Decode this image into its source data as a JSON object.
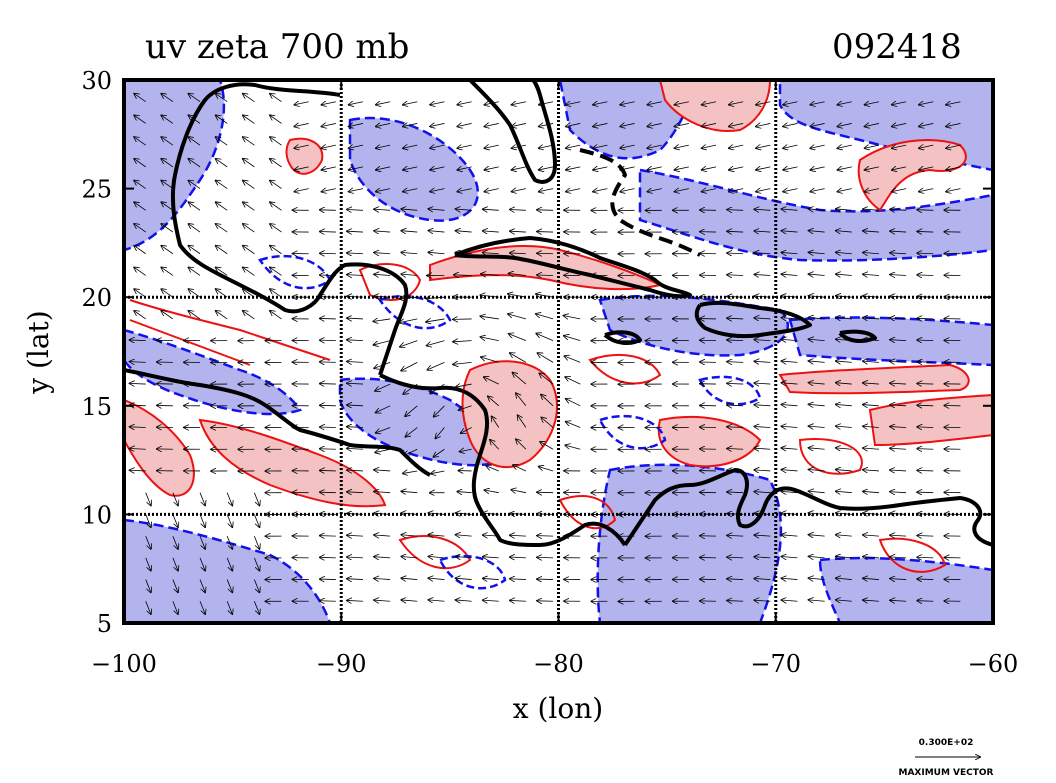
{
  "map": {
    "title": "uv zeta 700 mb",
    "timestamp": "092418",
    "xlabel": "x (lon)",
    "ylabel": "y (lat)",
    "xlim": [
      -100,
      -60
    ],
    "ylim": [
      5,
      30
    ],
    "x_ticks": [
      "−100",
      "−90",
      "−80",
      "−70",
      "−60"
    ],
    "x_tick_values": [
      -100,
      -90,
      -80,
      -70,
      -60
    ],
    "y_ticks": [
      "30",
      "25",
      "20",
      "15",
      "10",
      "5"
    ],
    "y_tick_values": [
      30,
      25,
      20,
      15,
      10,
      5
    ],
    "grid_lon": [
      -90,
      -80,
      -70
    ],
    "grid_lat": [
      10,
      20
    ],
    "colors": {
      "positive_fill": "#f4c2c2",
      "positive_contour": "#ee1111",
      "negative_fill": "#b3b3ee",
      "negative_contour": "#1111ee",
      "coastline": "#000000",
      "vectors": "#000000"
    },
    "legend": {
      "scale_value": "0.300E+02",
      "label": "MAXIMUM VECTOR"
    }
  }
}
